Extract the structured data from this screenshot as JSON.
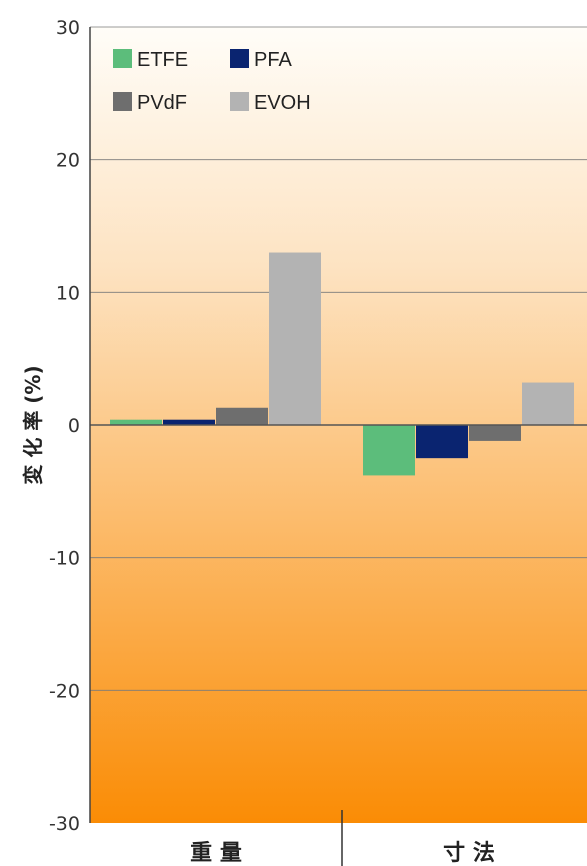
{
  "chart_data": {
    "type": "bar",
    "ylabel": "変 化 率 (%)",
    "ylim": [
      -30,
      30
    ],
    "yticks": [
      30,
      20,
      10,
      0,
      -10,
      -20,
      -30
    ],
    "grid": true,
    "legend_position": "top-left",
    "categories": [
      "重 量",
      "寸 法"
    ],
    "series": [
      {
        "name": "ETFE",
        "color": "#5cbd7b",
        "values": [
          0.4,
          -3.8
        ]
      },
      {
        "name": "PFA",
        "color": "#0a2470",
        "values": [
          0.4,
          -2.5
        ]
      },
      {
        "name": "PVdF",
        "color": "#6e6e6e",
        "values": [
          1.3,
          -1.2
        ]
      },
      {
        "name": "EVOH",
        "color": "#b3b3b3",
        "values": [
          13.0,
          3.2
        ]
      }
    ],
    "background_gradient": [
      "#fffdf8",
      "#fa8c05"
    ]
  }
}
